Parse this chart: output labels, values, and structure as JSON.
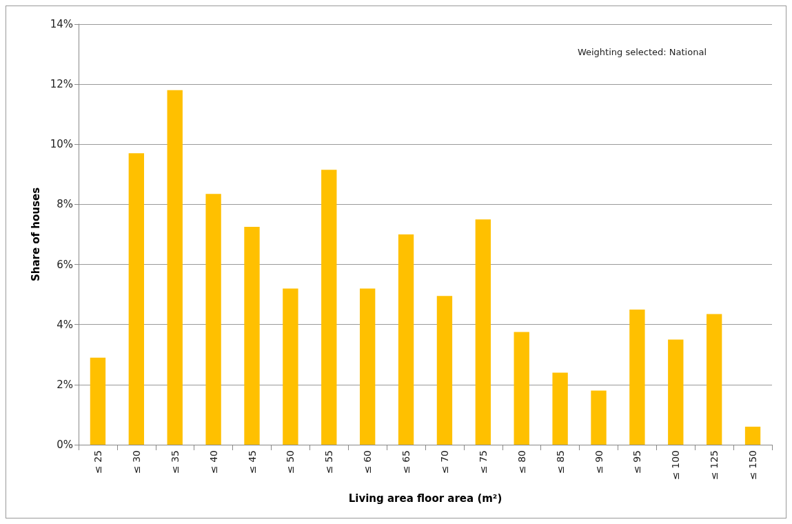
{
  "chart_data": {
    "type": "bar",
    "xlabel": "Living area floor area (m²)",
    "ylabel": "Share of houses",
    "categories": [
      "≤ 25",
      "≤ 30",
      "≤ 35",
      "≤ 40",
      "≤ 45",
      "≤ 50",
      "≤ 55",
      "≤ 60",
      "≤ 65",
      "≤ 70",
      "≤ 75",
      "≤ 80",
      "≤ 85",
      "≤ 90",
      "≤ 95",
      "≤ 100",
      "≤ 125",
      "≤ 150"
    ],
    "values": [
      2.9,
      9.7,
      11.8,
      8.35,
      7.25,
      5.2,
      9.15,
      5.2,
      7.0,
      4.95,
      7.5,
      3.75,
      2.4,
      1.8,
      4.5,
      3.5,
      4.35,
      0.6
    ],
    "color": "#ffc000",
    "ylim": [
      0,
      14
    ],
    "yticks": [
      {
        "value": 0,
        "label": "0%"
      },
      {
        "value": 2,
        "label": "2%"
      },
      {
        "value": 4,
        "label": "4%"
      },
      {
        "value": 6,
        "label": "6%"
      },
      {
        "value": 8,
        "label": "8%"
      },
      {
        "value": 10,
        "label": "10%"
      },
      {
        "value": 12,
        "label": "12%"
      },
      {
        "value": 14,
        "label": "14%"
      }
    ],
    "grid": "y",
    "annotations": [
      "Weighting selected: National"
    ]
  }
}
